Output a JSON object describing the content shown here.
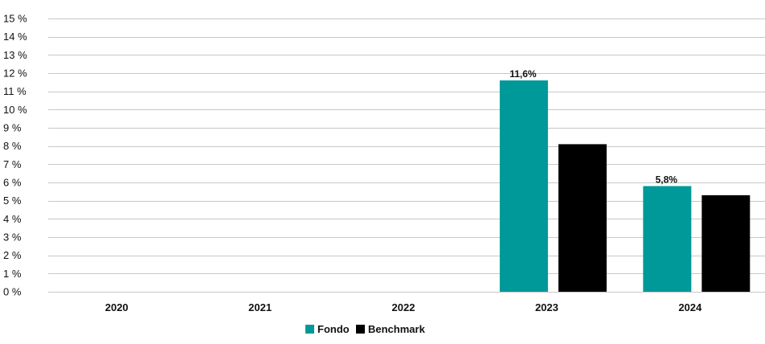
{
  "chart_data": {
    "type": "bar",
    "categories": [
      "2020",
      "2021",
      "2022",
      "2023",
      "2024"
    ],
    "series": [
      {
        "name": "Fondo",
        "color": "#009999",
        "values": [
          null,
          null,
          null,
          11.6,
          5.8
        ]
      },
      {
        "name": "Benchmark",
        "color": "#000000",
        "values": [
          null,
          null,
          null,
          8.1,
          5.3
        ]
      }
    ],
    "data_labels": [
      {
        "series": 0,
        "category": 3,
        "text": "11,6%"
      },
      {
        "series": 0,
        "category": 4,
        "text": "5,8%"
      }
    ],
    "y_ticks": [
      {
        "value": 0,
        "label": "0 %"
      },
      {
        "value": 1,
        "label": "1 %"
      },
      {
        "value": 2,
        "label": "2 %"
      },
      {
        "value": 3,
        "label": "3 %"
      },
      {
        "value": 4,
        "label": "4 %"
      },
      {
        "value": 5,
        "label": "5 %"
      },
      {
        "value": 6,
        "label": "6 %"
      },
      {
        "value": 7,
        "label": "7 %"
      },
      {
        "value": 8,
        "label": "8 %"
      },
      {
        "value": 9,
        "label": "9 %"
      },
      {
        "value": 10,
        "label": "10 %"
      },
      {
        "value": 11,
        "label": "11 %"
      },
      {
        "value": 12,
        "label": "12 %"
      },
      {
        "value": 13,
        "label": "13 %"
      },
      {
        "value": 14,
        "label": "14 %"
      },
      {
        "value": 15,
        "label": "15 %"
      }
    ],
    "ylim": [
      0,
      15
    ],
    "title": "",
    "xlabel": "",
    "ylabel": "",
    "grid": true,
    "legend": "bottom-center",
    "grid_color": "#c8c8c8"
  }
}
